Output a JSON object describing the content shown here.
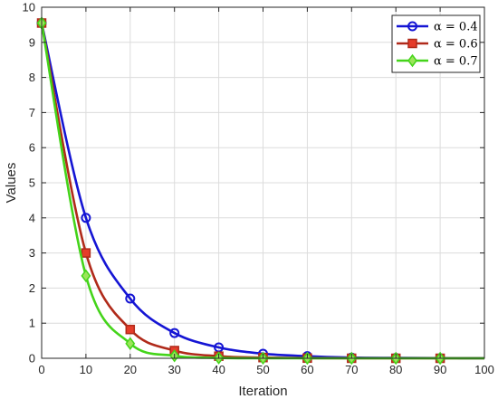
{
  "chart_data": {
    "type": "line",
    "title": "",
    "xlabel": "Iteration",
    "ylabel": "Values",
    "xlim": [
      0,
      100
    ],
    "ylim": [
      0,
      10
    ],
    "xticks": [
      0,
      10,
      20,
      30,
      40,
      50,
      60,
      70,
      80,
      90,
      100
    ],
    "yticks": [
      0,
      1,
      2,
      3,
      4,
      5,
      6,
      7,
      8,
      9,
      10
    ],
    "grid": true,
    "legend_position": "top-right",
    "series": [
      {
        "name": "α = 0.4",
        "color": "#1515d4",
        "marker": "circle",
        "x": [
          0,
          10,
          20,
          30,
          40,
          50,
          60,
          70,
          80,
          90,
          100
        ],
        "y": [
          9.55,
          4.0,
          1.7,
          0.72,
          0.31,
          0.13,
          0.06,
          0.02,
          0.01,
          0.004,
          0.002
        ],
        "marker_x": [
          0,
          10,
          20,
          30,
          40,
          50,
          60,
          70,
          80,
          90
        ]
      },
      {
        "name": "α = 0.6",
        "color": "#b02a1a",
        "marker": "square",
        "x": [
          0,
          10,
          20,
          30,
          40,
          50,
          60,
          70,
          80,
          90,
          100
        ],
        "y": [
          9.55,
          3.0,
          0.82,
          0.22,
          0.06,
          0.02,
          0.005,
          0.001,
          0.0,
          0.0,
          0.0
        ],
        "marker_x": [
          0,
          10,
          20,
          30,
          40,
          50,
          60,
          70,
          80,
          90
        ]
      },
      {
        "name": "α = 0.7",
        "color": "#44d41a",
        "marker": "diamond",
        "x": [
          0,
          10,
          20,
          30,
          40,
          50,
          60,
          70,
          80,
          90,
          100
        ],
        "y": [
          9.55,
          2.35,
          0.42,
          0.07,
          0.01,
          0.002,
          0.0,
          0.0,
          0.0,
          0.0,
          0.0
        ],
        "marker_x": [
          0,
          10,
          20,
          30,
          40,
          50,
          60,
          70,
          80,
          90
        ]
      }
    ]
  }
}
